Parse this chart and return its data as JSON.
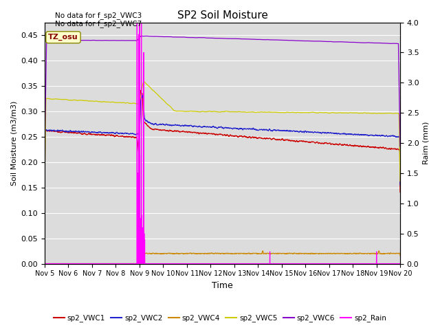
{
  "title": "SP2 Soil Moisture",
  "xlabel": "Time",
  "ylabel_left": "Soil Moisture (m3/m3)",
  "ylabel_right": "Raim (mm)",
  "no_data_text": [
    "No data for f_sp2_VWC3",
    "No data for f_sp2_VWC7"
  ],
  "tz_label": "TZ_osu",
  "ylim_left": [
    0.0,
    0.475
  ],
  "ylim_right": [
    0.0,
    4.0
  ],
  "yticks_left": [
    0.0,
    0.05,
    0.1,
    0.15,
    0.2,
    0.25,
    0.3,
    0.35,
    0.4,
    0.45
  ],
  "yticks_right": [
    0.0,
    0.5,
    1.0,
    1.5,
    2.0,
    2.5,
    3.0,
    3.5,
    4.0
  ],
  "xtick_labels": [
    "Nov 5",
    "Nov 6",
    "Nov 7",
    "Nov 8",
    "Nov 9",
    "Nov 10",
    "Nov 11",
    "Nov 12",
    "Nov 13",
    "Nov 14",
    "Nov 15",
    "Nov 16",
    "Nov 17",
    "Nov 18",
    "Nov 19",
    "Nov 20"
  ],
  "bg_color": "#dcdcdc",
  "grid_color": "#ffffff",
  "colors": {
    "VWC1": "#cc0000",
    "VWC2": "#2222cc",
    "VWC4": "#cc8800",
    "VWC5": "#cccc00",
    "VWC6": "#8800cc",
    "Rain": "#ff00ff"
  },
  "legend_entries": [
    {
      "label": "sp2_VWC1",
      "color": "#cc0000"
    },
    {
      "label": "sp2_VWC2",
      "color": "#2222cc"
    },
    {
      "label": "sp2_VWC4",
      "color": "#cc8800"
    },
    {
      "label": "sp2_VWC5",
      "color": "#cccc00"
    },
    {
      "label": "sp2_VWC6",
      "color": "#8800cc"
    },
    {
      "label": "sp2_Rain",
      "color": "#ff00ff"
    }
  ],
  "rain_day": 4.0,
  "n_points": 2880
}
